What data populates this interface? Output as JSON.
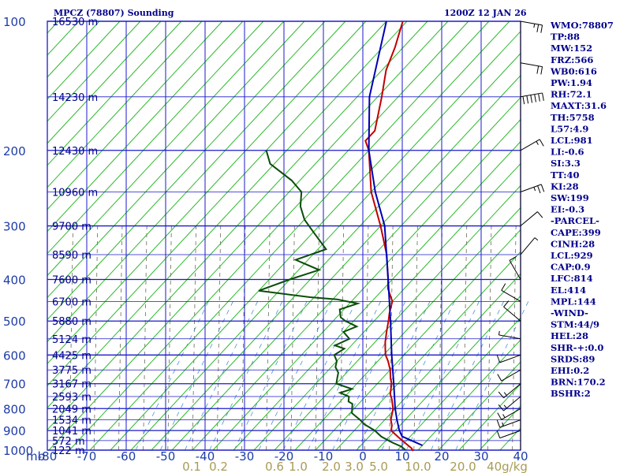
{
  "header": {
    "station_title": "MPCZ (78807) Sounding",
    "valid_time": "1200Z 12 JAN 26"
  },
  "chart_data": {
    "type": "skew-t",
    "title": "MPCZ (78807) Sounding",
    "xlabel": "°C",
    "ylabel": "mb",
    "temperature_ticks": [
      -80,
      -70,
      -60,
      -50,
      -40,
      -30,
      -20,
      -10,
      0,
      10,
      20,
      30,
      40
    ],
    "pressure_ticks": [
      100,
      200,
      300,
      400,
      500,
      600,
      700,
      800,
      900,
      1000
    ],
    "pressure_axis_label": "mb",
    "mixing_ratio_labels": [
      "0.1",
      "0.2",
      "0.6",
      "1.0",
      "2.0",
      "3.0",
      "5.0",
      "10.0",
      "20.0",
      "40g/kg"
    ],
    "height_labels": [
      {
        "p": 100,
        "label": "16530 m"
      },
      {
        "p": 150,
        "label": "14230 m"
      },
      {
        "p": 200,
        "label": "12430 m"
      },
      {
        "p": 250,
        "label": "10960 m"
      },
      {
        "p": 300,
        "label": "9700 m"
      },
      {
        "p": 350,
        "label": "8590 m"
      },
      {
        "p": 400,
        "label": "7600 m"
      },
      {
        "p": 450,
        "label": "6700 m"
      },
      {
        "p": 500,
        "label": "5880 m"
      },
      {
        "p": 550,
        "label": "5124 m"
      },
      {
        "p": 600,
        "label": "4425 m"
      },
      {
        "p": 650,
        "label": "3775 m"
      },
      {
        "p": 700,
        "label": "3167 m"
      },
      {
        "p": 750,
        "label": "2593 m"
      },
      {
        "p": 800,
        "label": "2049 m"
      },
      {
        "p": 850,
        "label": "1534 m"
      },
      {
        "p": 900,
        "label": "1041 m"
      },
      {
        "p": 950,
        "label": "572 m"
      },
      {
        "p": 1000,
        "label": "122 m"
      }
    ],
    "series": [
      {
        "name": "Temperature",
        "color": "#c00000",
        "points": [
          [
            1005,
            24
          ],
          [
            990,
            23
          ],
          [
            960,
            20
          ],
          [
            930,
            17
          ],
          [
            900,
            14
          ],
          [
            875,
            13
          ],
          [
            850,
            11.5
          ],
          [
            800,
            9.5
          ],
          [
            760,
            7
          ],
          [
            740,
            5.5
          ],
          [
            720,
            4.5
          ],
          [
            700,
            3.5
          ],
          [
            680,
            2
          ],
          [
            650,
            0
          ],
          [
            620,
            -2.5
          ],
          [
            600,
            -4.5
          ],
          [
            580,
            -6
          ],
          [
            560,
            -7.5
          ],
          [
            530,
            -9.5
          ],
          [
            500,
            -11.5
          ],
          [
            480,
            -13
          ],
          [
            450,
            -15
          ],
          [
            420,
            -19
          ],
          [
            400,
            -21
          ],
          [
            350,
            -27
          ],
          [
            300,
            -35
          ],
          [
            250,
            -45
          ],
          [
            200,
            -55
          ],
          [
            190,
            -58
          ],
          [
            180,
            -58
          ],
          [
            150,
            -64
          ],
          [
            130,
            -69
          ],
          [
            115,
            -72
          ],
          [
            100,
            -76
          ]
        ]
      },
      {
        "name": "Dewpoint",
        "color": "#0a4d0a",
        "points": [
          [
            1000,
            22
          ],
          [
            980,
            20
          ],
          [
            960,
            17
          ],
          [
            930,
            13
          ],
          [
            900,
            10
          ],
          [
            870,
            6
          ],
          [
            850,
            4
          ],
          [
            820,
            0.5
          ],
          [
            800,
            -0.5
          ],
          [
            780,
            -1.5
          ],
          [
            770,
            -3
          ],
          [
            750,
            -4
          ],
          [
            735,
            -7
          ],
          [
            720,
            -5
          ],
          [
            700,
            -10
          ],
          [
            680,
            -11
          ],
          [
            660,
            -12
          ],
          [
            640,
            -14
          ],
          [
            620,
            -15
          ],
          [
            600,
            -17
          ],
          [
            580,
            -16
          ],
          [
            570,
            -19
          ],
          [
            550,
            -17
          ],
          [
            530,
            -20
          ],
          [
            515,
            -18
          ],
          [
            500,
            -22
          ],
          [
            490,
            -24
          ],
          [
            470,
            -26
          ],
          [
            455,
            -23
          ],
          [
            445,
            -29
          ],
          [
            440,
            -36
          ],
          [
            425,
            -50
          ],
          [
            400,
            -45
          ],
          [
            380,
            -40
          ],
          [
            360,
            -48
          ],
          [
            340,
            -43
          ],
          [
            310,
            -50
          ],
          [
            290,
            -55
          ],
          [
            270,
            -59
          ],
          [
            250,
            -62
          ],
          [
            235,
            -67
          ],
          [
            215,
            -76
          ],
          [
            200,
            -80
          ]
        ]
      },
      {
        "name": "Parcel",
        "color": "#0000b4",
        "points": [
          [
            975,
            25
          ],
          [
            929,
            18
          ],
          [
            900,
            16
          ],
          [
            850,
            13
          ],
          [
            800,
            10
          ],
          [
            700,
            4
          ],
          [
            600,
            -3
          ],
          [
            500,
            -11
          ],
          [
            400,
            -21
          ],
          [
            300,
            -34
          ],
          [
            250,
            -44
          ],
          [
            200,
            -55
          ],
          [
            150,
            -67
          ],
          [
            100,
            -80
          ]
        ]
      }
    ],
    "wind_barbs": [
      {
        "p": 100,
        "dir": 100,
        "kt": 25
      },
      {
        "p": 125,
        "dir": 100,
        "kt": 20
      },
      {
        "p": 150,
        "dir": 80,
        "kt": 60
      },
      {
        "p": 200,
        "dir": 60,
        "kt": 15
      },
      {
        "p": 250,
        "dir": 70,
        "kt": 25
      },
      {
        "p": 300,
        "dir": 50,
        "kt": 10
      },
      {
        "p": 350,
        "dir": 40,
        "kt": 5
      },
      {
        "p": 400,
        "dir": 330,
        "kt": 10
      },
      {
        "p": 450,
        "dir": 300,
        "kt": 10
      },
      {
        "p": 500,
        "dir": 310,
        "kt": 10
      },
      {
        "p": 550,
        "dir": 280,
        "kt": 5
      },
      {
        "p": 600,
        "dir": 250,
        "kt": 10
      },
      {
        "p": 650,
        "dir": 240,
        "kt": 10
      },
      {
        "p": 700,
        "dir": 230,
        "kt": 15
      },
      {
        "p": 750,
        "dir": 230,
        "kt": 15
      },
      {
        "p": 800,
        "dir": 240,
        "kt": 15
      },
      {
        "p": 850,
        "dir": 250,
        "kt": 15
      },
      {
        "p": 900,
        "dir": 250,
        "kt": 10
      }
    ],
    "indices": [
      "WMO:78807",
      "TP:88",
      "MW:152",
      "FRZ:566",
      "WB0:616",
      "PW:1.94",
      "RH:72.1",
      "MAXT:31.6",
      "TH:5758",
      "L57:4.9",
      "LCL:981",
      "LI:-0.6",
      "SI:3.3",
      "TT:40",
      "KI:28",
      "SW:199",
      "EI:-0.3",
      "-PARCEL-",
      "CAPE:399",
      "CINH:28",
      "LCL:929",
      "CAP:0.9",
      "LFC:814",
      "EL:414",
      "MPL:144",
      "-WIND-",
      "STM:44/9",
      "HEL:28",
      "SHR-+:0.0",
      "SRDS:89",
      "EHI:0.2",
      "BRN:170.2",
      "BSHR:2"
    ]
  }
}
